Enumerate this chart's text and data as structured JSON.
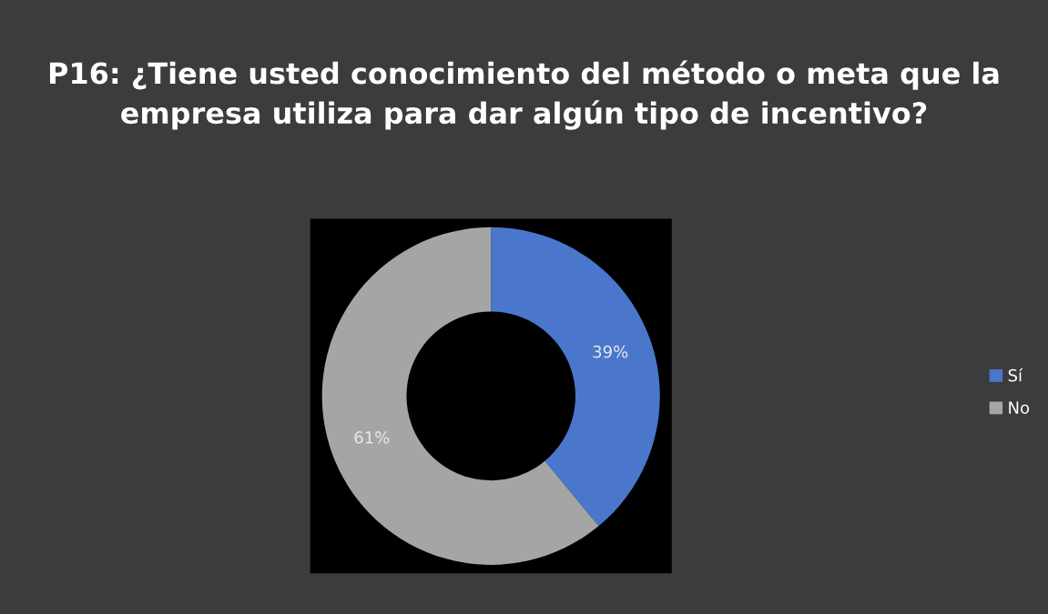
{
  "chart_data": {
    "type": "donut",
    "title": "P16: ¿Tiene usted conocimiento del método o meta que la empresa utiliza para dar algún tipo de incentivo?",
    "categories": [
      "Sí",
      "No"
    ],
    "values": [
      39,
      61
    ],
    "colors": [
      "#4a77cc",
      "#a5a5a5"
    ],
    "value_labels": [
      "39%",
      "61%"
    ],
    "legend": "right"
  }
}
